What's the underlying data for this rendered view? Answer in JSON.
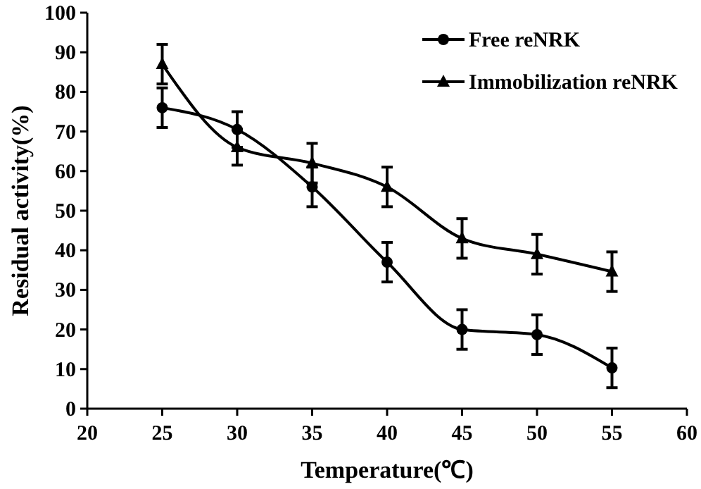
{
  "chart_data": {
    "type": "line",
    "xlabel": "Temperature(℃)",
    "ylabel": "Residual activity(%)",
    "x": [
      25,
      30,
      35,
      40,
      45,
      50,
      55
    ],
    "series": [
      {
        "name": "Free reNRK",
        "color": "#000000",
        "marker": "circle",
        "values": [
          76,
          70.5,
          56,
          37,
          20,
          18.7,
          10.3
        ],
        "errors": [
          5,
          4.5,
          5,
          5,
          5,
          5,
          5
        ]
      },
      {
        "name": "Immobilization reNRK",
        "color": "#000000",
        "marker": "triangle",
        "values": [
          87,
          66,
          62,
          56,
          43,
          39,
          34.6
        ],
        "errors": [
          5,
          4.5,
          5,
          5,
          5,
          5,
          5
        ]
      }
    ],
    "xlim": [
      20,
      60
    ],
    "xticks": [
      20,
      25,
      30,
      35,
      40,
      45,
      50,
      55,
      60
    ],
    "ylim": [
      0,
      100
    ],
    "yticks": [
      0,
      10,
      20,
      30,
      40,
      50,
      60,
      70,
      80,
      90,
      100
    ],
    "grid": false,
    "legend": "top right",
    "line_style": "solid"
  }
}
